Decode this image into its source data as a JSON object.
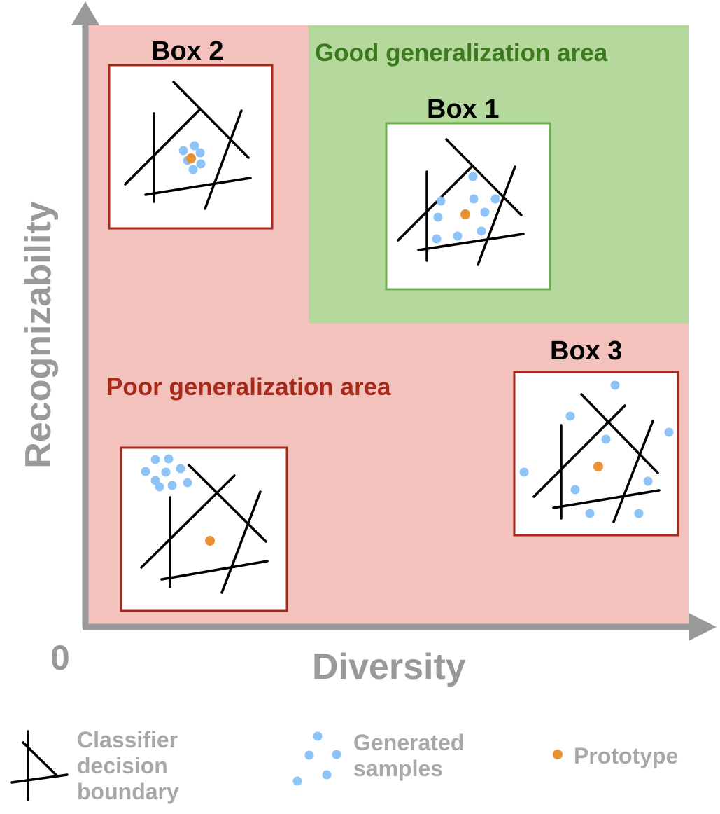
{
  "axes": {
    "x_label": "Diversity",
    "y_label": "Recognizability",
    "origin_label": "0"
  },
  "regions": {
    "good": {
      "label": "Good generalization area",
      "color": "#b5d99c",
      "text_color": "#3d7a1f"
    },
    "poor": {
      "label": "Poor generalization area",
      "color": "#f3c2bc",
      "text_color": "#a8281a"
    }
  },
  "boxes": {
    "box1": {
      "label": "Box 1",
      "border": "#6ab04c"
    },
    "box2": {
      "label": "Box 2",
      "border": "#a8281a"
    },
    "box3": {
      "label": "Box 3",
      "border": "#a8281a"
    },
    "box4": {
      "label": "",
      "border": "#a8281a"
    }
  },
  "legend": {
    "boundary": [
      "Classifier",
      "decision",
      "boundary"
    ],
    "samples": [
      "Generated",
      "samples"
    ],
    "prototype": [
      "Prototype"
    ]
  },
  "colors": {
    "axis": "#999999",
    "sample": "#8ec3f7",
    "prototype": "#ea9233",
    "legend_text": "#a8a8a8"
  }
}
